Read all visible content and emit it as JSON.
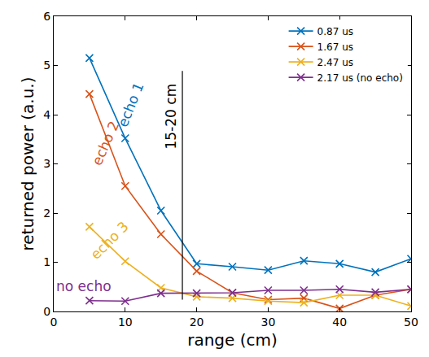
{
  "chart_data": {
    "type": "line",
    "x_label": "range (cm)",
    "y_label": "returned power (a.u.)",
    "x": [
      5,
      10,
      15,
      20,
      25,
      30,
      35,
      40,
      45,
      50
    ],
    "series": [
      {
        "name": "0.87 us",
        "color": "#0072bd",
        "marker": "x",
        "values": [
          5.15,
          3.52,
          2.05,
          0.97,
          0.91,
          0.84,
          1.03,
          0.97,
          0.8,
          1.07
        ]
      },
      {
        "name": "1.67 us",
        "color": "#d95319",
        "marker": "x",
        "values": [
          4.42,
          2.55,
          1.57,
          0.82,
          0.38,
          0.24,
          0.27,
          0.06,
          0.33,
          0.45
        ]
      },
      {
        "name": "2.47 us",
        "color": "#edb120",
        "marker": "x",
        "values": [
          1.72,
          1.02,
          0.48,
          0.3,
          0.27,
          0.21,
          0.18,
          0.33,
          0.33,
          0.11
        ]
      },
      {
        "name": "2.17 us (no echo)",
        "color": "#7e2f8e",
        "marker": "x",
        "values": [
          0.22,
          0.21,
          0.37,
          0.37,
          0.38,
          0.43,
          0.43,
          0.45,
          0.39,
          0.45
        ]
      }
    ],
    "annotations": [
      {
        "text": "echo 1",
        "color": "#0072bd"
      },
      {
        "text": "echo 2",
        "color": "#d95319"
      },
      {
        "text": "echo 3",
        "color": "#edb120"
      },
      {
        "text": "no echo",
        "color": "#7e2f8e"
      },
      {
        "text": "15-20 cm",
        "x": 18,
        "color": "#000000"
      }
    ],
    "xlim": [
      0,
      50
    ],
    "xticks": [
      0,
      10,
      20,
      30,
      40,
      50
    ],
    "ylim": [
      0,
      6
    ],
    "yticks": [
      0,
      1,
      2,
      3,
      4,
      5,
      6
    ],
    "grid": false,
    "legend": "top-right"
  }
}
